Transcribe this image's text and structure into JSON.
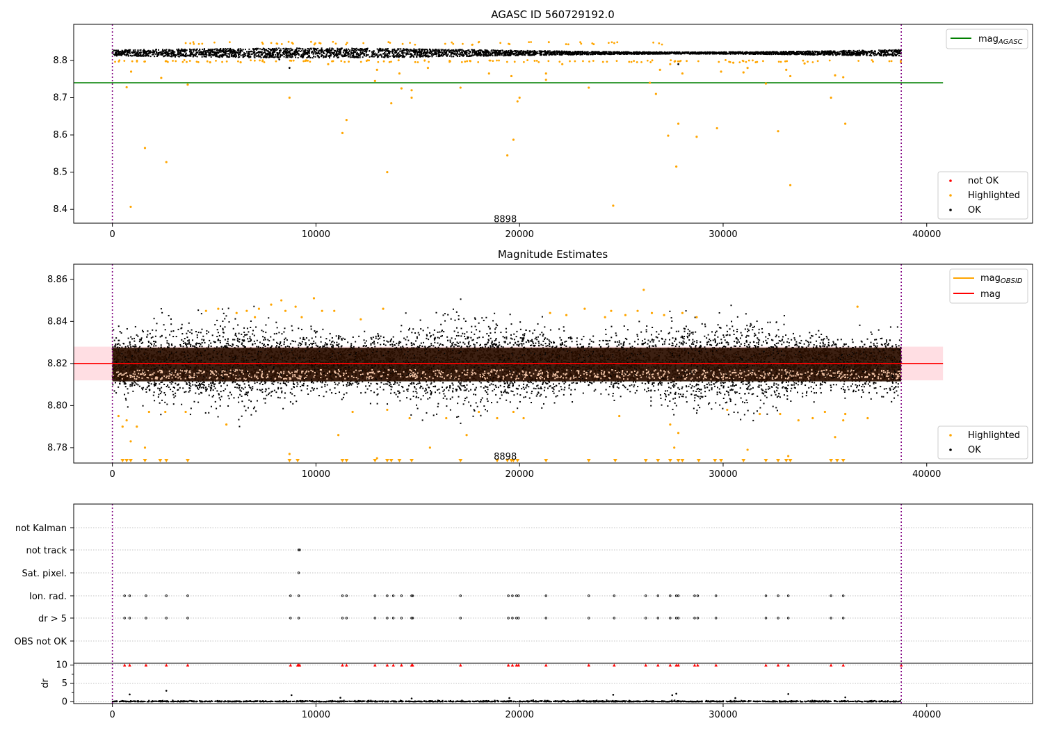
{
  "chart_data": [
    {
      "type": "scatter",
      "title": "AGASC ID 560729192.0",
      "xlim": [
        -1900,
        45200
      ],
      "ylim": [
        8.363,
        8.897
      ],
      "xticks": [
        0,
        10000,
        20000,
        30000,
        40000
      ],
      "yticks": [
        8.4,
        8.5,
        8.6,
        8.7,
        8.8
      ],
      "ytick_labels": [
        "8.4",
        "8.5",
        "8.6",
        "8.7",
        "8.8"
      ],
      "vlines": [
        0,
        38750
      ],
      "annotation": {
        "text": "8898",
        "x": 19300,
        "y": 8.373
      },
      "mag_agasc": {
        "value": 8.74,
        "x_range": [
          -1900,
          40800
        ],
        "color": "#008000"
      },
      "ok_band": {
        "x_range": [
          0,
          38750
        ],
        "center": 8.82,
        "half_width": 0.013
      },
      "series": [
        {
          "name": "not OK",
          "color": "#ff0000",
          "points": []
        },
        {
          "name": "Highlighted",
          "color": "#ffa500",
          "points": [
            [
              900,
              8.407
            ],
            [
              1600,
              8.565
            ],
            [
              2650,
              8.527
            ],
            [
              3700,
              8.735
            ],
            [
              700,
              8.728
            ],
            [
              920,
              8.77
            ],
            [
              8700,
              8.7
            ],
            [
              11300,
              8.605
            ],
            [
              11500,
              8.64
            ],
            [
              12900,
              8.745
            ],
            [
              13000,
              8.775
            ],
            [
              13500,
              8.5
            ],
            [
              13700,
              8.685
            ],
            [
              14100,
              8.765
            ],
            [
              14200,
              8.725
            ],
            [
              14700,
              8.7
            ],
            [
              14700,
              8.72
            ],
            [
              15500,
              8.78
            ],
            [
              17100,
              8.727
            ],
            [
              18500,
              8.765
            ],
            [
              19400,
              8.545
            ],
            [
              19600,
              8.758
            ],
            [
              19700,
              8.587
            ],
            [
              19900,
              8.69
            ],
            [
              20000,
              8.7
            ],
            [
              21300,
              8.748
            ],
            [
              21300,
              8.765
            ],
            [
              23400,
              8.727
            ],
            [
              24600,
              8.41
            ],
            [
              26700,
              8.71
            ],
            [
              26900,
              8.775
            ],
            [
              27300,
              8.598
            ],
            [
              27700,
              8.515
            ],
            [
              27800,
              8.63
            ],
            [
              28000,
              8.765
            ],
            [
              28700,
              8.595
            ],
            [
              29700,
              8.618
            ],
            [
              29900,
              8.77
            ],
            [
              31000,
              8.768
            ],
            [
              31200,
              8.78
            ],
            [
              32100,
              8.738
            ],
            [
              32700,
              8.61
            ],
            [
              33100,
              8.775
            ],
            [
              33300,
              8.465
            ],
            [
              33300,
              8.758
            ],
            [
              35300,
              8.7
            ],
            [
              35500,
              8.76
            ],
            [
              35900,
              8.755
            ],
            [
              36000,
              8.63
            ],
            [
              2400,
              8.753
            ],
            [
              4800,
              8.795
            ],
            [
              6300,
              8.795
            ],
            [
              10600,
              8.79
            ],
            [
              22100,
              8.79
            ],
            [
              26400,
              8.74
            ],
            [
              27400,
              8.79
            ],
            [
              30500,
              8.794
            ],
            [
              34000,
              8.792
            ]
          ]
        },
        {
          "name": "OK",
          "color": "#000000",
          "points": [
            [
              8700,
              8.78
            ],
            [
              27800,
              8.79
            ],
            [
              8200,
              8.803
            ]
          ]
        }
      ],
      "legend": {
        "lines": [
          {
            "label_base": "mag",
            "label_sub": "AGASC",
            "color": "#008000"
          }
        ],
        "markers": [
          {
            "label": "not OK",
            "color": "#ff0000"
          },
          {
            "label": "Highlighted",
            "color": "#ffa500"
          },
          {
            "label": "OK",
            "color": "#000000"
          }
        ],
        "lines_position": "top-right",
        "markers_position": "lower-right"
      }
    },
    {
      "type": "scatter",
      "title": "Magnitude Estimates",
      "xlim": [
        -1900,
        45200
      ],
      "ylim": [
        8.7727,
        8.8672
      ],
      "xticks": [
        0,
        10000,
        20000,
        30000,
        40000
      ],
      "yticks": [
        8.78,
        8.8,
        8.82,
        8.84,
        8.86
      ],
      "ytick_labels": [
        "8.78",
        "8.80",
        "8.82",
        "8.84",
        "8.86"
      ],
      "vlines": [
        0,
        38750
      ],
      "annotation": {
        "text": "8898",
        "x": 19300,
        "y": 8.7757
      },
      "mag_line": {
        "value": 8.82,
        "x_range": [
          -1900,
          40800
        ],
        "color": "#ff0000"
      },
      "mag_band": {
        "lower": 8.812,
        "upper": 8.828,
        "x_range": [
          -1900,
          40800
        ],
        "color": "#ffb6c1"
      },
      "ok_band": {
        "x_range": [
          0,
          38750
        ],
        "center": 8.82,
        "half_width": 0.012
      },
      "highlighted_above": [
        [
          4600,
          8.845
        ],
        [
          5200,
          8.846
        ],
        [
          6100,
          8.844
        ],
        [
          6600,
          8.845
        ],
        [
          7200,
          8.846
        ],
        [
          7800,
          8.848
        ],
        [
          8300,
          8.85
        ],
        [
          8500,
          8.845
        ],
        [
          9000,
          8.847
        ],
        [
          9900,
          8.851
        ],
        [
          10300,
          8.845
        ],
        [
          10900,
          8.845
        ],
        [
          13300,
          8.846
        ],
        [
          21500,
          8.844
        ],
        [
          22300,
          8.843
        ],
        [
          23200,
          8.846
        ],
        [
          24500,
          8.845
        ],
        [
          25200,
          8.843
        ],
        [
          25800,
          8.845
        ],
        [
          26100,
          8.855
        ],
        [
          26500,
          8.844
        ],
        [
          27100,
          8.843
        ],
        [
          28000,
          8.844
        ],
        [
          28700,
          8.842
        ],
        [
          36600,
          8.847
        ],
        [
          9300,
          8.842
        ],
        [
          24200,
          8.842
        ],
        [
          12200,
          8.841
        ],
        [
          7000,
          8.842
        ]
      ],
      "highlighted_below": [
        [
          300,
          8.795
        ],
        [
          500,
          8.79
        ],
        [
          700,
          8.793
        ],
        [
          900,
          8.783
        ],
        [
          1200,
          8.79
        ],
        [
          1600,
          8.78
        ],
        [
          1800,
          8.797
        ],
        [
          2600,
          8.797
        ],
        [
          3600,
          8.797
        ],
        [
          5600,
          8.791
        ],
        [
          8700,
          8.777
        ],
        [
          11100,
          8.786
        ],
        [
          11800,
          8.797
        ],
        [
          13000,
          8.775
        ],
        [
          13500,
          8.798
        ],
        [
          14600,
          8.794
        ],
        [
          15600,
          8.78
        ],
        [
          16400,
          8.794
        ],
        [
          17400,
          8.786
        ],
        [
          18000,
          8.797
        ],
        [
          18900,
          8.794
        ],
        [
          19700,
          8.797
        ],
        [
          20200,
          8.794
        ],
        [
          24900,
          8.795
        ],
        [
          27400,
          8.791
        ],
        [
          27600,
          8.78
        ],
        [
          27800,
          8.787
        ],
        [
          30200,
          8.798
        ],
        [
          31200,
          8.779
        ],
        [
          31800,
          8.796
        ],
        [
          32800,
          8.796
        ],
        [
          33200,
          8.776
        ],
        [
          33700,
          8.793
        ],
        [
          34400,
          8.794
        ],
        [
          35000,
          8.797
        ],
        [
          35500,
          8.785
        ],
        [
          35900,
          8.793
        ],
        [
          36000,
          8.796
        ],
        [
          37100,
          8.794
        ]
      ],
      "highlighted_floor": [
        500,
        700,
        900,
        1600,
        2350,
        2650,
        3700,
        8700,
        9100,
        11300,
        11500,
        12900,
        13500,
        13700,
        14100,
        14700,
        17100,
        18900,
        19400,
        19600,
        19700,
        19900,
        21300,
        23400,
        24700,
        26200,
        26800,
        27400,
        27800,
        28000,
        28800,
        29600,
        29900,
        31000,
        32100,
        32700,
        33100,
        33300,
        35300,
        35600,
        35900
      ],
      "legend": {
        "lines": [
          {
            "label_base": "mag",
            "label_sub": "OBSID",
            "color": "#ffa500"
          },
          {
            "label_base": "mag",
            "label_sub": "",
            "color": "#ff0000"
          }
        ],
        "markers": [
          {
            "label": "Highlighted",
            "color": "#ffa500"
          },
          {
            "label": "OK",
            "color": "#000000"
          }
        ],
        "lines_position": "top-right",
        "markers_position": "lower-right"
      }
    },
    {
      "type": "scatter",
      "xlim": [
        -1900,
        45200
      ],
      "xticks": [
        0,
        10000,
        20000,
        30000,
        40000
      ],
      "vlines": [
        0,
        38750
      ],
      "flags": [
        "not Kalman",
        "not track",
        "Sat. pixel.",
        "Ion. rad.",
        "dr > 5",
        "OBS not OK"
      ],
      "flag_events": {
        "not track": [
          9150,
          9200
        ],
        "Sat. pixel.": [
          9150
        ],
        "Ion. rad.": [
          600,
          850,
          1650,
          2650,
          3700,
          8750,
          9150,
          11300,
          11500,
          12900,
          13500,
          13800,
          14200,
          14700,
          14750,
          17100,
          19450,
          19650,
          19850,
          19950,
          21300,
          23400,
          24650,
          26200,
          26800,
          27400,
          27700,
          27800,
          28600,
          28750,
          29650,
          32100,
          32700,
          33200,
          35300,
          35900
        ],
        "dr > 5": [
          600,
          850,
          1650,
          2650,
          3700,
          8750,
          9150,
          11300,
          11500,
          12900,
          13500,
          13800,
          14200,
          14700,
          14750,
          17100,
          19450,
          19650,
          19850,
          19950,
          21300,
          23400,
          24650,
          26200,
          26800,
          27400,
          27700,
          27800,
          28600,
          28750,
          29650,
          32100,
          32700,
          33200,
          35300,
          35900
        ]
      },
      "dr_panel": {
        "ylabel": "dr",
        "ylim": [
          -0.5,
          10.5
        ],
        "yticks": [
          0,
          5,
          10
        ],
        "clipped_at": 10,
        "clipped_x": [
          600,
          850,
          1650,
          2650,
          3700,
          8750,
          9100,
          9150,
          9200,
          11300,
          11500,
          12900,
          13500,
          13800,
          14200,
          14700,
          14750,
          17100,
          19450,
          19650,
          19850,
          19950,
          21300,
          23400,
          24650,
          26200,
          26800,
          27400,
          27700,
          27800,
          28600,
          28750,
          29650,
          32100,
          32700,
          33200,
          35300,
          35900,
          38750
        ],
        "scatter": [
          [
            850,
            2.0
          ],
          [
            2650,
            3.0
          ],
          [
            8800,
            1.8
          ],
          [
            24600,
            1.9
          ],
          [
            27500,
            1.8
          ],
          [
            27700,
            2.2
          ],
          [
            33200,
            2.1
          ],
          [
            19500,
            1.0
          ],
          [
            11200,
            1.1
          ],
          [
            14700,
            0.9
          ],
          [
            30600,
            1.0
          ],
          [
            36000,
            1.2
          ]
        ]
      }
    }
  ]
}
